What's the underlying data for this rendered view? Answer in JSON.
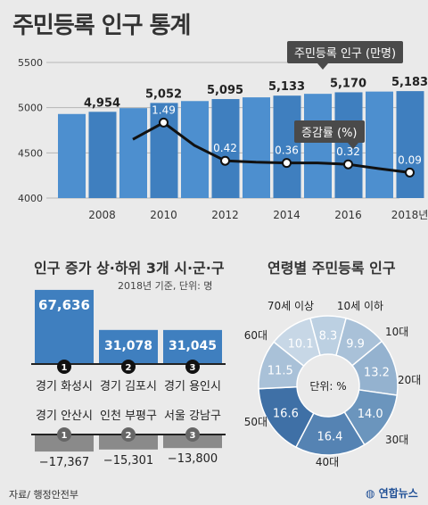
{
  "title": "주민등록 인구 통계",
  "population_chart": {
    "legend_population": "주민등록 인구 (만명)",
    "legend_rate": "증감률 (%)"
  },
  "change_section": {
    "title": "인구 증가 상·하위 3개 시·군·구",
    "note": "2018년 기준, 단위: 명"
  },
  "age_section": {
    "title": "연령별 주민등록 인구",
    "center_label": "단위: %"
  },
  "source": "자료/ 행정안전부",
  "brand": "연합뉴스",
  "colors": {
    "bar": "#3f7fbf",
    "bar_light": "#4d8fcf",
    "line": "#111111",
    "neg_bar": "#8a8a8a"
  },
  "chart_data": [
    {
      "type": "bar",
      "series": [
        {
          "name": "주민등록 인구 (만명)",
          "x": [
            2007,
            2008,
            2009,
            2010,
            2011,
            2012,
            2013,
            2014,
            2015,
            2016,
            2017,
            2018
          ],
          "values": [
            4930,
            4954,
            4995,
            5052,
            5073,
            5095,
            5114,
            5133,
            5153,
            5170,
            5178,
            5183
          ],
          "labels": {
            "2008": "4,954",
            "2010": "5,052",
            "2012": "5,095",
            "2014": "5,133",
            "2016": "5,170",
            "2018": "5,183"
          }
        }
      ],
      "y_ticks": [
        "4000",
        "4500",
        "5000",
        "5500"
      ],
      "ylim": [
        4000,
        5500
      ],
      "x_ticks": [
        "2008",
        "2010",
        "2012",
        "2014",
        "2016",
        "2018년"
      ]
    },
    {
      "type": "line",
      "series": [
        {
          "name": "증감률 (%)",
          "x": [
            2009,
            2010,
            2011,
            2012,
            2013,
            2014,
            2015,
            2016,
            2017,
            2018
          ],
          "values": [
            1.02,
            1.49,
            0.85,
            0.42,
            0.38,
            0.36,
            0.36,
            0.32,
            0.2,
            0.09
          ],
          "labels": {
            "2010": "1.49",
            "2012": "0.42",
            "2014": "0.36",
            "2016": "0.32",
            "2018": "0.09"
          }
        }
      ]
    },
    {
      "type": "bar",
      "title": "인구 증가 상·하위 3개 시·군·구",
      "top": [
        {
          "rank": "1",
          "name": "경기 화성시",
          "value": 67636,
          "label": "67,636"
        },
        {
          "rank": "2",
          "name": "경기 김포시",
          "value": 31078,
          "label": "31,078"
        },
        {
          "rank": "3",
          "name": "경기 용인시",
          "value": 31045,
          "label": "31,045"
        }
      ],
      "bottom": [
        {
          "rank": "1",
          "name": "경기 안산시",
          "value": -17367,
          "label": "−17,367"
        },
        {
          "rank": "2",
          "name": "인천 부평구",
          "value": -15301,
          "label": "−15,301"
        },
        {
          "rank": "3",
          "name": "서울 강남구",
          "value": -13800,
          "label": "−13,800"
        }
      ]
    },
    {
      "type": "pie",
      "title": "연령별 주민등록 인구",
      "slices": [
        {
          "name": "10세 이하",
          "value": 8.3,
          "color": "#bcd0e2"
        },
        {
          "name": "10대",
          "value": 9.9,
          "color": "#a9c1d8"
        },
        {
          "name": "20대",
          "value": 13.2,
          "color": "#94b2cf"
        },
        {
          "name": "30대",
          "value": 14.0,
          "color": "#6b95bd"
        },
        {
          "name": "40대",
          "value": 16.4,
          "color": "#5583b3"
        },
        {
          "name": "50대",
          "value": 16.6,
          "color": "#3f70a6"
        },
        {
          "name": "60대",
          "value": 11.5,
          "color": "#a9c1d8"
        },
        {
          "name": "70세 이상",
          "value": 10.1,
          "color": "#c7d7e6"
        }
      ]
    }
  ]
}
